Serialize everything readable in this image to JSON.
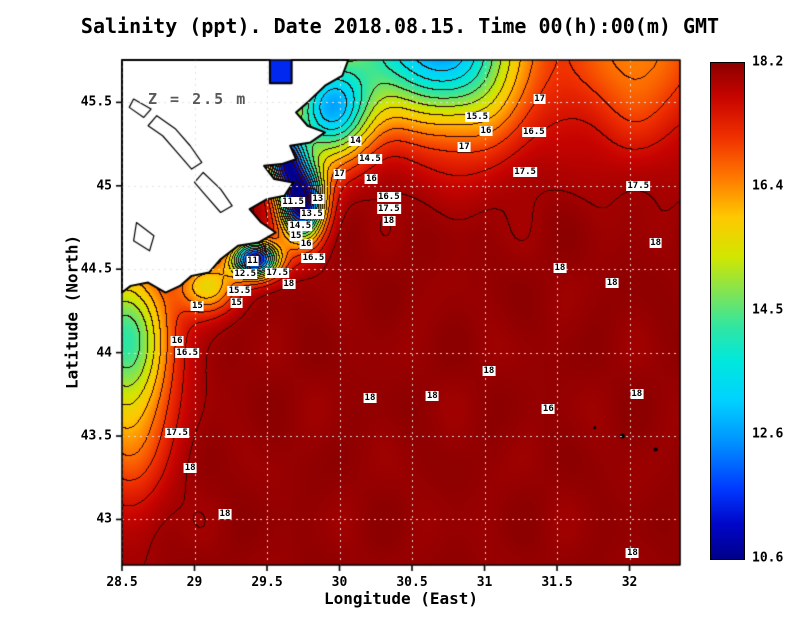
{
  "chart_data": {
    "type": "heatmap",
    "title": "Salinity (ppt). Date 2018.08.15. Time 00(h):00(m) GMT",
    "annotation": "Z = 2.5 m",
    "xlabel": "Longitude (East)",
    "ylabel": "Latitude (North)",
    "x_range": [
      28.5,
      32.348
    ],
    "y_range": [
      42.727,
      45.754
    ],
    "x_ticks": [
      {
        "v": 28.5,
        "label": "28.5"
      },
      {
        "v": 29,
        "label": "29"
      },
      {
        "v": 29.5,
        "label": "29.5"
      },
      {
        "v": 30,
        "label": "30"
      },
      {
        "v": 30.5,
        "label": "30.5"
      },
      {
        "v": 31,
        "label": "31"
      },
      {
        "v": 31.5,
        "label": "31.5"
      },
      {
        "v": 32,
        "label": "32"
      }
    ],
    "y_ticks": [
      {
        "v": 43,
        "label": "43"
      },
      {
        "v": 43.5,
        "label": "43.5"
      },
      {
        "v": 44,
        "label": "44"
      },
      {
        "v": 44.5,
        "label": "44.5"
      },
      {
        "v": 45,
        "label": "45"
      },
      {
        "v": 45.5,
        "label": "45.5"
      }
    ],
    "colorbar": {
      "min": 10.6,
      "max": 18.2,
      "tick_labels": [
        "18.2",
        "16.4",
        "14.5",
        "12.6",
        "10.6"
      ],
      "palette": [
        {
          "t": 0.0,
          "c": "#000089"
        },
        {
          "t": 0.07,
          "c": "#0006c8"
        },
        {
          "t": 0.14,
          "c": "#0038ff"
        },
        {
          "t": 0.24,
          "c": "#0096ff"
        },
        {
          "t": 0.32,
          "c": "#00d2ff"
        },
        {
          "t": 0.4,
          "c": "#00e8dc"
        },
        {
          "t": 0.47,
          "c": "#32e6a0"
        },
        {
          "t": 0.54,
          "c": "#84e450"
        },
        {
          "t": 0.61,
          "c": "#d2e600"
        },
        {
          "t": 0.69,
          "c": "#ffc800"
        },
        {
          "t": 0.77,
          "c": "#ff7800"
        },
        {
          "t": 0.85,
          "c": "#f03000"
        },
        {
          "t": 0.93,
          "c": "#c80400"
        },
        {
          "t": 1.0,
          "c": "#8c0000"
        }
      ]
    },
    "contour_interval_ppt": 0.5,
    "contour_labels": [
      {
        "lon": 31.38,
        "lat": 45.52,
        "v": "17"
      },
      {
        "lon": 30.95,
        "lat": 45.41,
        "v": "15.5"
      },
      {
        "lon": 31.01,
        "lat": 45.33,
        "v": "16"
      },
      {
        "lon": 31.34,
        "lat": 45.32,
        "v": "16.5"
      },
      {
        "lon": 30.86,
        "lat": 45.23,
        "v": "17"
      },
      {
        "lon": 31.28,
        "lat": 45.08,
        "v": "17.5"
      },
      {
        "lon": 32.06,
        "lat": 45.0,
        "v": "17.5"
      },
      {
        "lon": 32.18,
        "lat": 44.66,
        "v": "18"
      },
      {
        "lon": 30.11,
        "lat": 45.27,
        "v": "14"
      },
      {
        "lon": 30.21,
        "lat": 45.16,
        "v": "14.5"
      },
      {
        "lon": 30.0,
        "lat": 45.07,
        "v": "17"
      },
      {
        "lon": 30.22,
        "lat": 45.04,
        "v": "16"
      },
      {
        "lon": 29.68,
        "lat": 44.9,
        "v": "11.5"
      },
      {
        "lon": 29.85,
        "lat": 44.92,
        "v": "13"
      },
      {
        "lon": 29.81,
        "lat": 44.83,
        "v": "13.5"
      },
      {
        "lon": 29.73,
        "lat": 44.76,
        "v": "14.5"
      },
      {
        "lon": 29.7,
        "lat": 44.7,
        "v": "15"
      },
      {
        "lon": 29.77,
        "lat": 44.65,
        "v": "16"
      },
      {
        "lon": 29.82,
        "lat": 44.57,
        "v": "16.5"
      },
      {
        "lon": 30.34,
        "lat": 44.93,
        "v": "16.5"
      },
      {
        "lon": 30.34,
        "lat": 44.86,
        "v": "17.5"
      },
      {
        "lon": 30.34,
        "lat": 44.79,
        "v": "18"
      },
      {
        "lon": 29.4,
        "lat": 44.55,
        "v": "11"
      },
      {
        "lon": 29.35,
        "lat": 44.47,
        "v": "12.5"
      },
      {
        "lon": 29.57,
        "lat": 44.48,
        "v": "17.5"
      },
      {
        "lon": 29.65,
        "lat": 44.41,
        "v": "18"
      },
      {
        "lon": 29.31,
        "lat": 44.37,
        "v": "15.5"
      },
      {
        "lon": 29.29,
        "lat": 44.3,
        "v": "15"
      },
      {
        "lon": 29.02,
        "lat": 44.28,
        "v": "15"
      },
      {
        "lon": 28.88,
        "lat": 44.07,
        "v": "16"
      },
      {
        "lon": 28.95,
        "lat": 44.0,
        "v": "16.5"
      },
      {
        "lon": 28.88,
        "lat": 43.52,
        "v": "17.5"
      },
      {
        "lon": 28.97,
        "lat": 43.31,
        "v": "18"
      },
      {
        "lon": 29.21,
        "lat": 43.03,
        "v": "18"
      },
      {
        "lon": 30.21,
        "lat": 43.73,
        "v": "18"
      },
      {
        "lon": 30.64,
        "lat": 43.74,
        "v": "18"
      },
      {
        "lon": 31.03,
        "lat": 43.89,
        "v": "18"
      },
      {
        "lon": 31.44,
        "lat": 43.66,
        "v": "16"
      },
      {
        "lon": 31.52,
        "lat": 44.51,
        "v": "18"
      },
      {
        "lon": 31.88,
        "lat": 44.42,
        "v": "18"
      },
      {
        "lon": 32.05,
        "lat": 43.75,
        "v": "18"
      },
      {
        "lon": 32.02,
        "lat": 42.8,
        "v": "18"
      }
    ],
    "field_model": {
      "base": 18.12,
      "lows": [
        {
          "x": 29.74,
          "y": 44.9,
          "a": 7.6,
          "sx": 0.15,
          "sy": 0.22
        },
        {
          "x": 29.42,
          "y": 44.56,
          "a": 7.0,
          "sx": 0.16,
          "sy": 0.11
        },
        {
          "x": 29.62,
          "y": 45.16,
          "a": 5.5,
          "sx": 0.13,
          "sy": 0.18
        },
        {
          "x": 29.93,
          "y": 45.45,
          "a": 5.0,
          "sx": 0.28,
          "sy": 0.3
        },
        {
          "x": 30.45,
          "y": 45.85,
          "a": 3.8,
          "sx": 0.5,
          "sy": 0.42
        },
        {
          "x": 30.9,
          "y": 45.8,
          "a": 3.2,
          "sx": 0.45,
          "sy": 0.55
        },
        {
          "x": 32.05,
          "y": 45.8,
          "a": 1.8,
          "sx": 0.5,
          "sy": 0.55
        },
        {
          "x": 28.52,
          "y": 44.15,
          "a": 3.3,
          "sx": 0.32,
          "sy": 0.42
        },
        {
          "x": 28.55,
          "y": 43.6,
          "a": 1.8,
          "sx": 0.28,
          "sy": 0.5
        },
        {
          "x": 29.1,
          "y": 44.4,
          "a": 2.4,
          "sx": 0.2,
          "sy": 0.16
        }
      ],
      "ripples": [
        {
          "a": 0.06,
          "fx": 7.3,
          "fy": 9.1
        },
        {
          "a": 0.05,
          "fx": 12.7,
          "fy": 5.3
        }
      ],
      "fresh_patch": {
        "lon_min": 29.52,
        "lon_max": 29.67,
        "lat_min": 45.6,
        "value": 11.5
      }
    },
    "land": {
      "coast": [
        [
          28.5,
          45.754
        ],
        [
          29.52,
          45.754
        ],
        [
          29.52,
          45.615
        ],
        [
          29.67,
          45.615
        ],
        [
          29.67,
          45.754
        ],
        [
          30.06,
          45.754
        ],
        [
          30.02,
          45.66
        ],
        [
          29.9,
          45.6
        ],
        [
          29.78,
          45.5
        ],
        [
          29.7,
          45.44
        ],
        [
          29.78,
          45.36
        ],
        [
          29.9,
          45.32
        ],
        [
          29.8,
          45.26
        ],
        [
          29.66,
          45.24
        ],
        [
          29.7,
          45.16
        ],
        [
          29.6,
          45.13
        ],
        [
          29.48,
          45.12
        ],
        [
          29.55,
          45.04
        ],
        [
          29.68,
          45.02
        ],
        [
          29.62,
          44.94
        ],
        [
          29.5,
          44.92
        ],
        [
          29.38,
          44.86
        ],
        [
          29.46,
          44.78
        ],
        [
          29.56,
          44.72
        ],
        [
          29.44,
          44.66
        ],
        [
          29.3,
          44.64
        ],
        [
          29.18,
          44.56
        ],
        [
          29.1,
          44.48
        ],
        [
          28.98,
          44.46
        ],
        [
          28.9,
          44.4
        ],
        [
          28.8,
          44.36
        ],
        [
          28.68,
          44.42
        ],
        [
          28.56,
          44.4
        ],
        [
          28.5,
          44.36
        ]
      ],
      "lakes": [
        [
          [
            28.74,
            45.42
          ],
          [
            28.87,
            45.34
          ],
          [
            28.97,
            45.24
          ],
          [
            29.05,
            45.14
          ],
          [
            28.98,
            45.1
          ],
          [
            28.88,
            45.2
          ],
          [
            28.78,
            45.3
          ],
          [
            28.68,
            45.36
          ]
        ],
        [
          [
            29.06,
            45.08
          ],
          [
            29.18,
            44.98
          ],
          [
            29.26,
            44.88
          ],
          [
            29.18,
            44.84
          ],
          [
            29.08,
            44.94
          ],
          [
            29.0,
            45.02
          ]
        ],
        [
          [
            28.6,
            44.78
          ],
          [
            28.72,
            44.7
          ],
          [
            28.69,
            44.61
          ],
          [
            28.58,
            44.67
          ]
        ],
        [
          [
            28.58,
            45.52
          ],
          [
            28.7,
            45.46
          ],
          [
            28.65,
            45.41
          ],
          [
            28.55,
            45.47
          ]
        ]
      ],
      "islands": [
        [
          31.95,
          43.5,
          2.5
        ],
        [
          32.18,
          43.42,
          2.0
        ],
        [
          31.76,
          43.55,
          1.5
        ]
      ]
    }
  }
}
